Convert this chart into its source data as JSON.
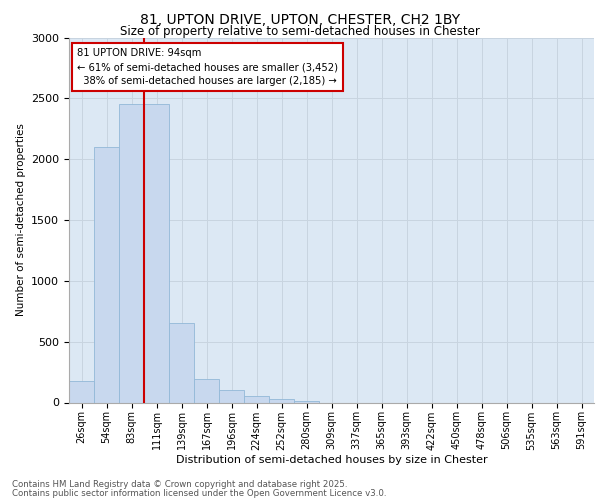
{
  "title1": "81, UPTON DRIVE, UPTON, CHESTER, CH2 1BY",
  "title2": "Size of property relative to semi-detached houses in Chester",
  "xlabel": "Distribution of semi-detached houses by size in Chester",
  "ylabel": "Number of semi-detached properties",
  "property_label": "81 UPTON DRIVE: 94sqm",
  "pct_smaller": 61,
  "count_smaller": "3,452",
  "pct_larger": 38,
  "count_larger": "2,185",
  "bin_labels": [
    "26sqm",
    "54sqm",
    "83sqm",
    "111sqm",
    "139sqm",
    "167sqm",
    "196sqm",
    "224sqm",
    "252sqm",
    "280sqm",
    "309sqm",
    "337sqm",
    "365sqm",
    "393sqm",
    "422sqm",
    "450sqm",
    "478sqm",
    "506sqm",
    "535sqm",
    "563sqm",
    "591sqm"
  ],
  "bar_values": [
    175,
    2100,
    2450,
    2450,
    650,
    195,
    100,
    50,
    30,
    10,
    0,
    0,
    0,
    0,
    0,
    0,
    0,
    0,
    0,
    0,
    0
  ],
  "bar_color": "#c8d8ee",
  "bar_edge_color": "#92b8d8",
  "vline_x": 2.5,
  "vline_color": "#cc0000",
  "annotation_box_color": "#cc0000",
  "ylim": [
    0,
    3000
  ],
  "yticks": [
    0,
    500,
    1000,
    1500,
    2000,
    2500,
    3000
  ],
  "grid_color": "#c8d4e0",
  "bg_color": "#dce8f4",
  "footer1": "Contains HM Land Registry data © Crown copyright and database right 2025.",
  "footer2": "Contains public sector information licensed under the Open Government Licence v3.0."
}
